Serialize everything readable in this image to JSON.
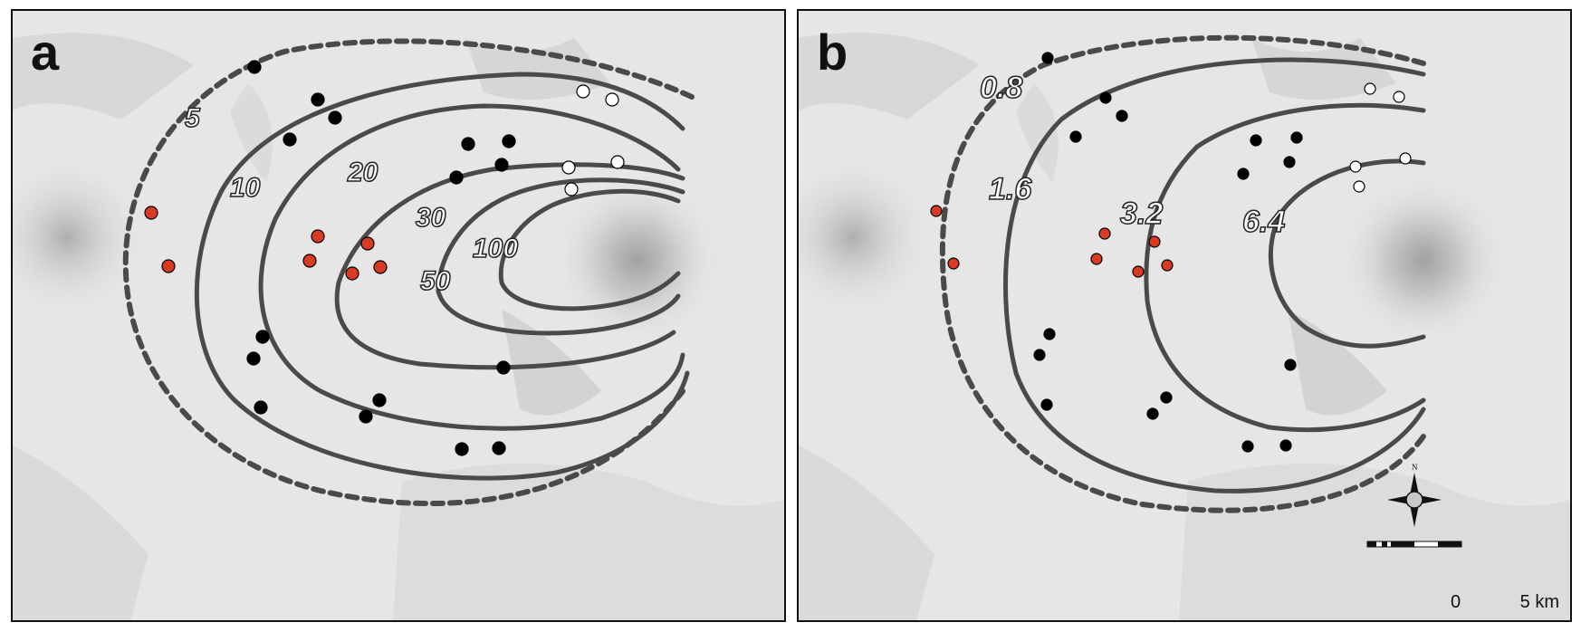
{
  "panels": [
    {
      "letter": "a",
      "contour_labels": [
        {
          "text": "5",
          "style": "dashed-outer"
        },
        {
          "text": "10",
          "style": "solid"
        },
        {
          "text": "20",
          "style": "solid"
        },
        {
          "text": "30",
          "style": "solid"
        },
        {
          "text": "50",
          "style": "solid"
        },
        {
          "text": "100",
          "style": "solid"
        }
      ]
    },
    {
      "letter": "b",
      "contour_labels": [
        {
          "text": "0.8",
          "style": "dashed-outer"
        },
        {
          "text": "1.6",
          "style": "solid"
        },
        {
          "text": "3.2",
          "style": "solid"
        },
        {
          "text": "6.4",
          "style": "solid"
        }
      ],
      "scale_bar": {
        "start_label": "0",
        "end_label": "5 km"
      },
      "north_arrow": {
        "label": "N",
        "icon": "compass-rose-icon"
      }
    }
  ],
  "colors": {
    "terrain_background": "#e6e6e6",
    "contour_line": "#4a4a4a",
    "site_black": "#000000",
    "site_red": "#d83a24",
    "site_white": "#ffffff"
  }
}
